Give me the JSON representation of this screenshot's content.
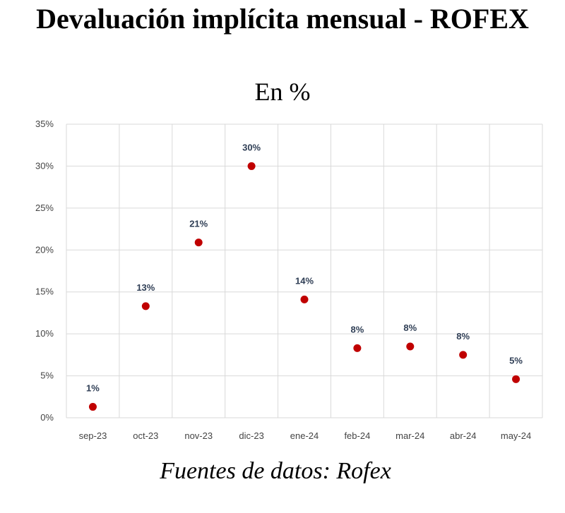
{
  "title": "Devaluación implícita mensual - ROFEX",
  "subtitle": "En %",
  "footer": "Fuentes de datos: Rofex",
  "colors": {
    "marker": "#c00000",
    "grid": "#d9d9d9",
    "label": "#2f3e55"
  },
  "chart_data": {
    "type": "scatter",
    "title": "Devaluación implícita mensual - ROFEX",
    "subtitle": "En %",
    "xlabel": "",
    "ylabel": "",
    "categories": [
      "sep-23",
      "oct-23",
      "nov-23",
      "dic-23",
      "ene-24",
      "feb-24",
      "mar-24",
      "abr-24",
      "may-24"
    ],
    "values": [
      1.3,
      13.3,
      20.9,
      30.0,
      14.1,
      8.3,
      8.5,
      7.5,
      4.6
    ],
    "data_labels": [
      "1%",
      "13%",
      "21%",
      "30%",
      "14%",
      "8%",
      "8%",
      "8%",
      "5%"
    ],
    "ylim": [
      0,
      35
    ],
    "yticks": [
      0,
      5,
      10,
      15,
      20,
      25,
      30,
      35
    ],
    "ytick_labels": [
      "0%",
      "5%",
      "10%",
      "15%",
      "20%",
      "25%",
      "30%",
      "35%"
    ],
    "grid": true,
    "legend": "none"
  }
}
